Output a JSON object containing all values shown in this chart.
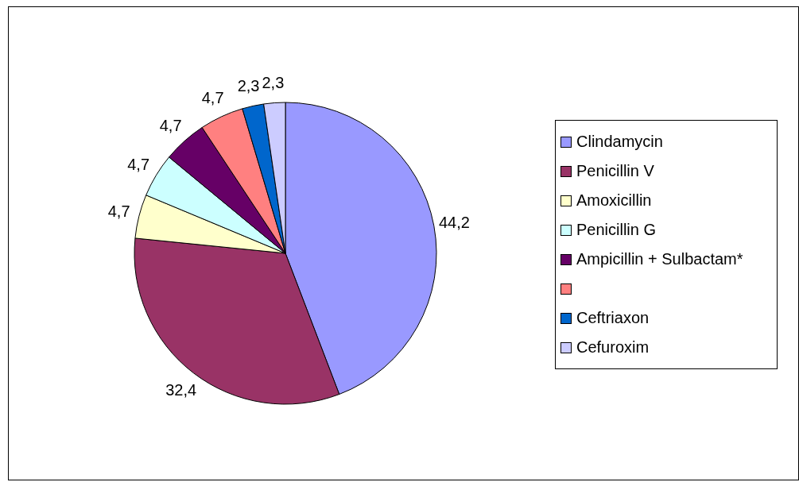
{
  "chart_data": {
    "type": "pie",
    "categories": [
      "Clindamycin",
      "Penicillin V",
      "Amoxicillin",
      "Penicillin G",
      "Ampicillin + Sulbactam*",
      null,
      "Ceftriaxon",
      "Cefuroxim"
    ],
    "values": [
      44.2,
      32.4,
      4.7,
      4.7,
      4.7,
      4.7,
      2.3,
      2.3
    ],
    "value_labels": [
      "44,2",
      "32,4",
      "4,7",
      "4,7",
      "4,7",
      "4,7",
      "2,3",
      "2,3"
    ],
    "colors": [
      "#9999ff",
      "#993366",
      "#ffffcc",
      "#ccffff",
      "#660066",
      "#ff8080",
      "#0066cc",
      "#ccccff"
    ],
    "legend": "right"
  }
}
